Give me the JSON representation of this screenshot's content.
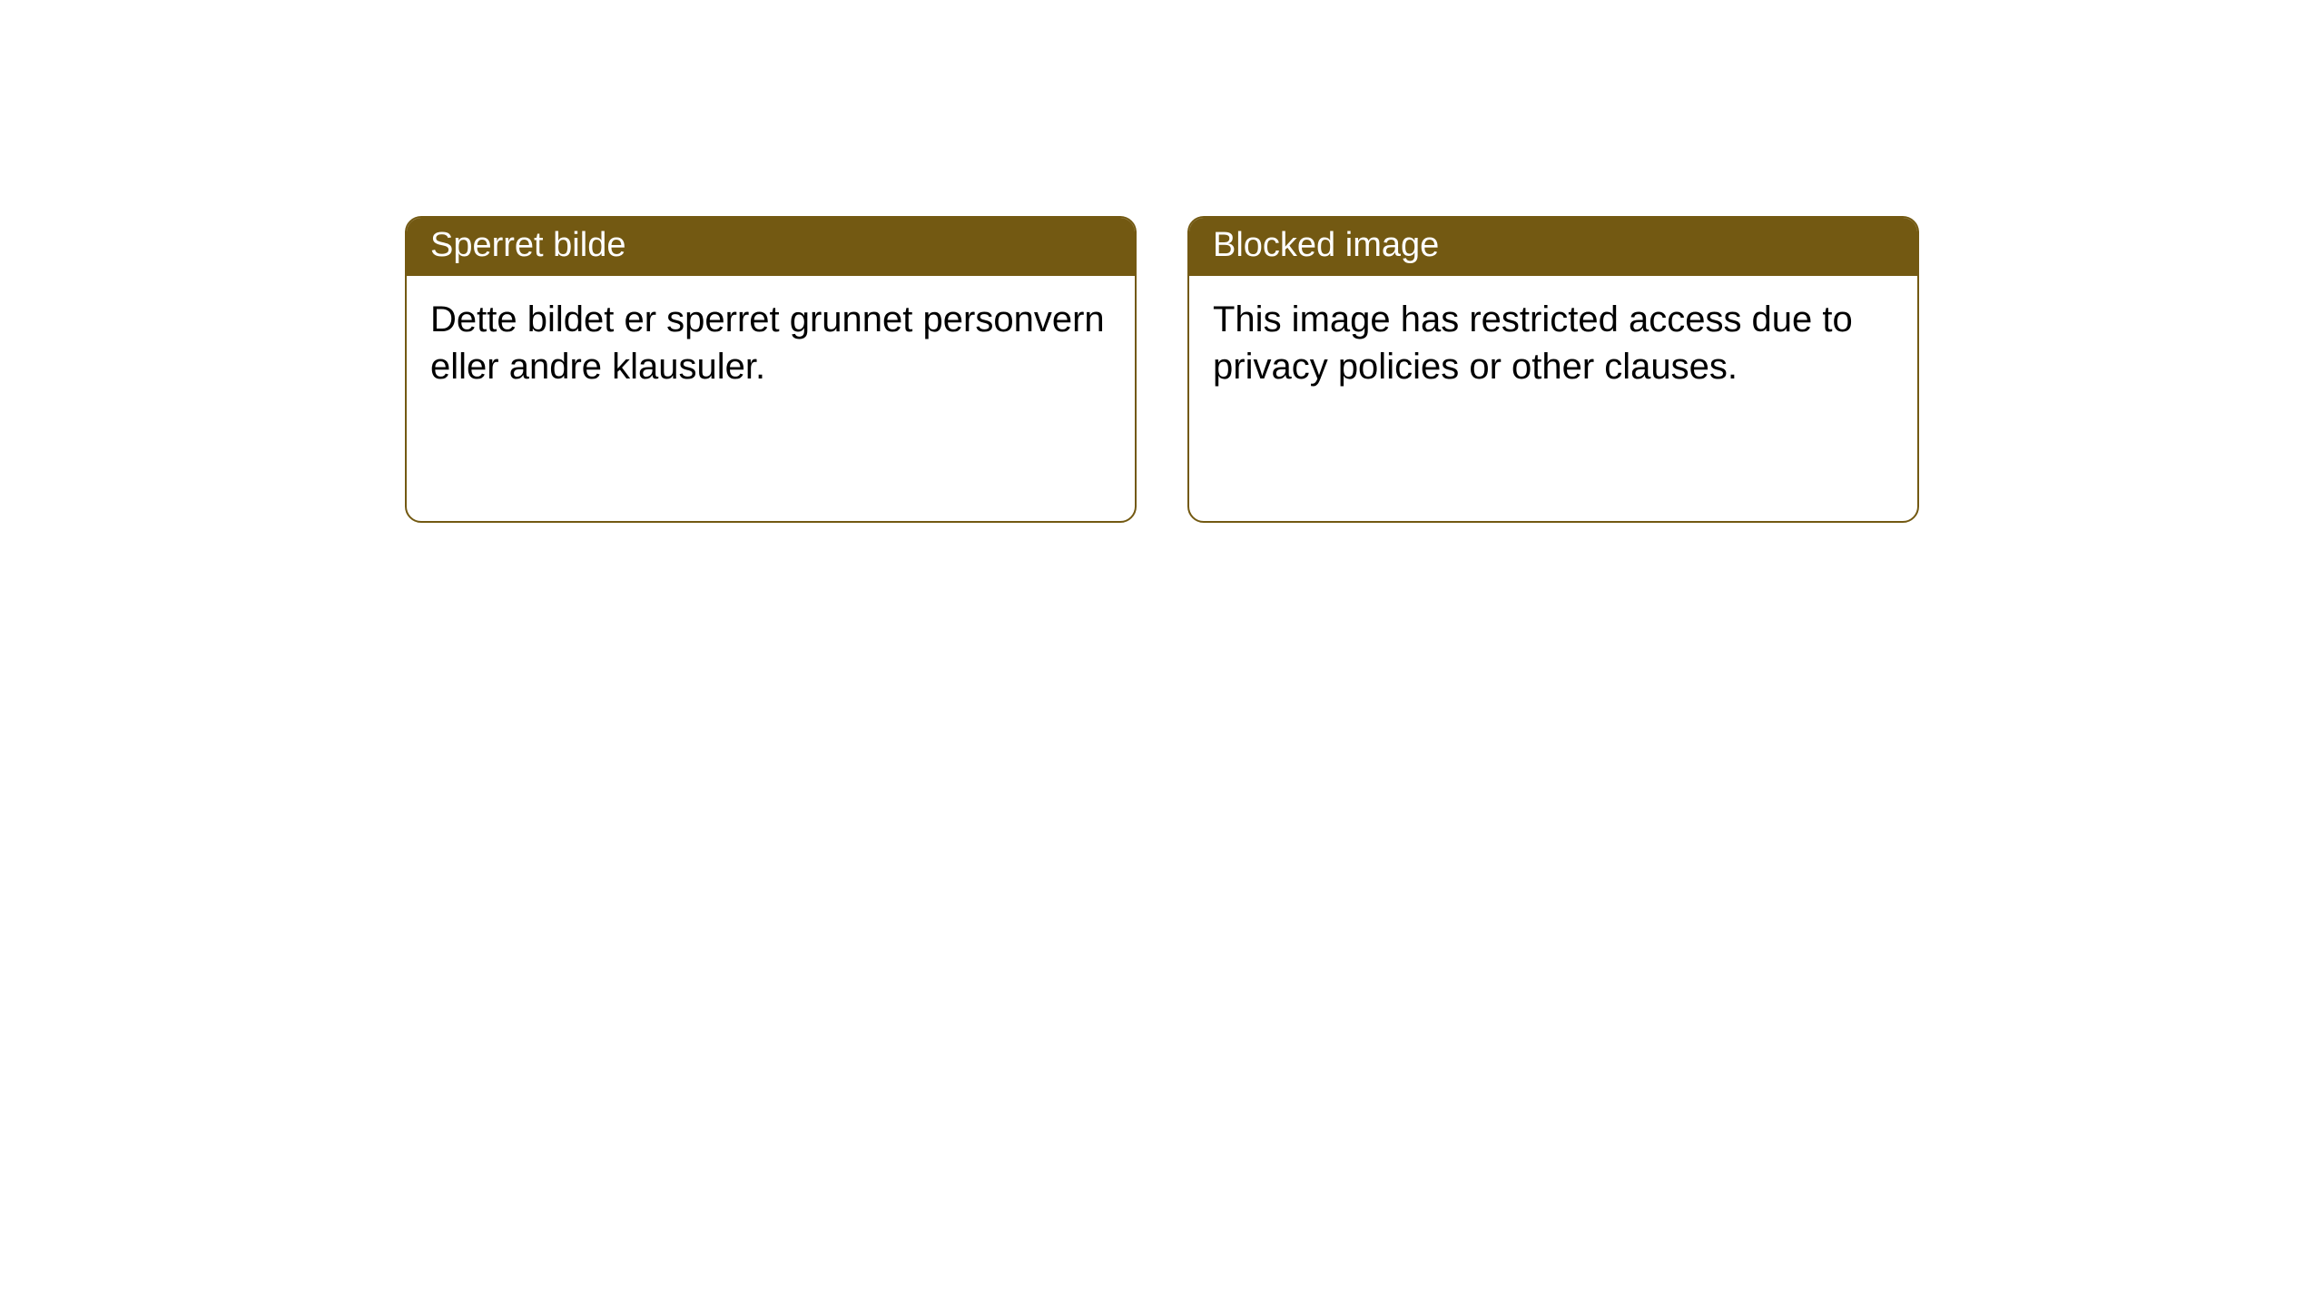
{
  "colors": {
    "header_bg": "#735912",
    "header_text": "#ffffff",
    "border": "#735912",
    "body_bg": "#ffffff",
    "body_text": "#000000"
  },
  "cards": [
    {
      "title": "Sperret bilde",
      "body": "Dette bildet er sperret grunnet personvern eller andre klausuler."
    },
    {
      "title": "Blocked image",
      "body": "This image has restricted access due to privacy policies or other clauses."
    }
  ]
}
